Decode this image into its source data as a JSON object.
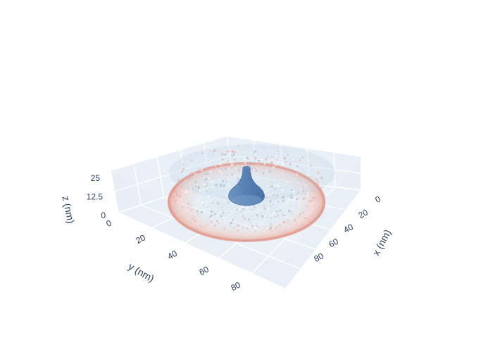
{
  "chart_data": {
    "type": "3d-volume",
    "axes": {
      "x": {
        "title": "x (nm)",
        "range": [
          0,
          100
        ],
        "ticks": [
          {
            "value": 0,
            "label": "0"
          },
          {
            "value": 20,
            "label": "20"
          },
          {
            "value": 40,
            "label": "40"
          },
          {
            "value": 60,
            "label": "60"
          },
          {
            "value": 80,
            "label": "80"
          }
        ]
      },
      "y": {
        "title": "y (nm)",
        "range": [
          0,
          100
        ],
        "ticks": [
          {
            "value": 0,
            "label": "0"
          },
          {
            "value": 20,
            "label": "20"
          },
          {
            "value": 40,
            "label": "40"
          },
          {
            "value": 60,
            "label": "60"
          },
          {
            "value": 80,
            "label": "80"
          }
        ]
      },
      "z": {
        "title": "z (nm)",
        "range": [
          0,
          25
        ],
        "ticks": [
          {
            "value": 0,
            "label": "0"
          },
          {
            "value": 12.5,
            "label": "12.5"
          },
          {
            "value": 25,
            "label": "25"
          }
        ]
      }
    },
    "grid": true,
    "legend": "none",
    "colors": {
      "axis_text": "#2a3f5f",
      "scene_bg": "#e5ecf6",
      "volume_high": "#e8a59a",
      "volume_low": "#b3cfe3",
      "isosurface": "#3d6fa8"
    }
  }
}
